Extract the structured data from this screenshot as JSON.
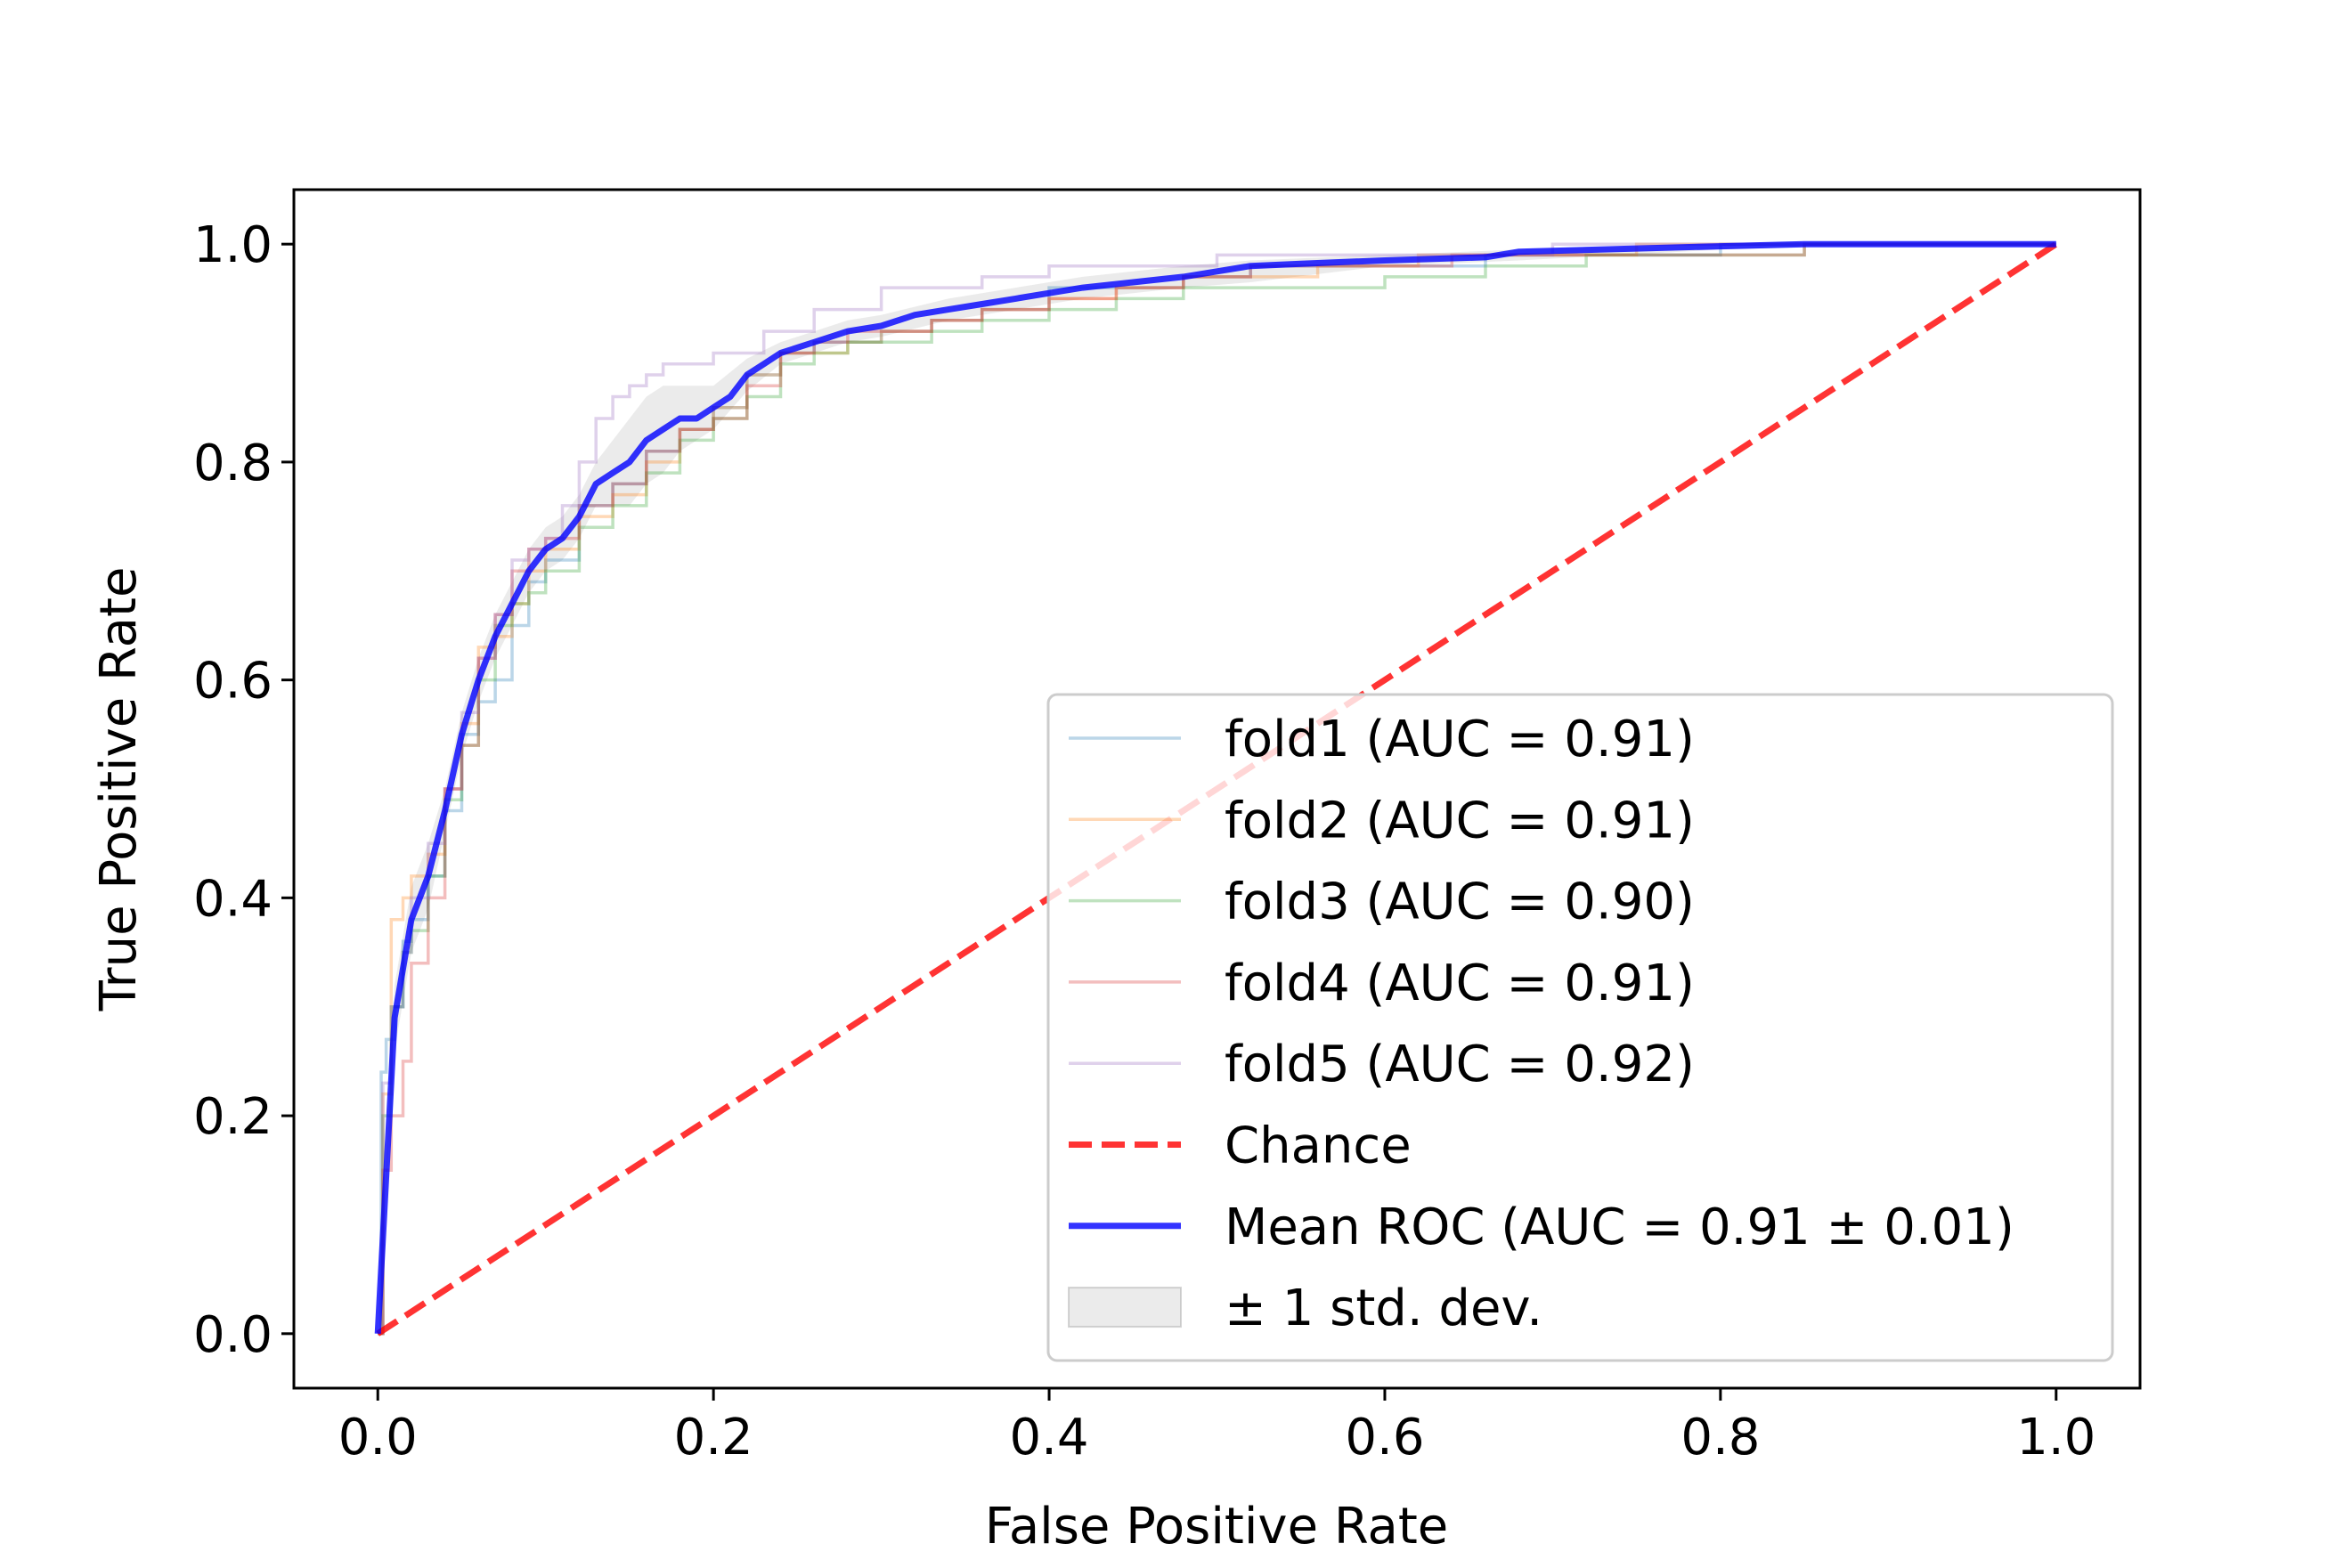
{
  "chart_data": {
    "type": "line",
    "title": "",
    "xlabel": "False Positive Rate",
    "ylabel": "True Positive Rate",
    "xlim": [
      -0.05,
      1.05
    ],
    "ylim": [
      -0.05,
      1.05
    ],
    "xticks": [
      0.0,
      0.2,
      0.4,
      0.6,
      0.8,
      1.0
    ],
    "yticks": [
      0.0,
      0.2,
      0.4,
      0.6,
      0.8,
      1.0
    ],
    "xtick_labels": [
      "0.0",
      "0.2",
      "0.4",
      "0.6",
      "0.8",
      "1.0"
    ],
    "ytick_labels": [
      "0.0",
      "0.2",
      "0.4",
      "0.6",
      "0.8",
      "1.0"
    ],
    "grid": false,
    "legend_position": "lower-right",
    "series": [
      {
        "name": "fold1 (AUC = 0.91)",
        "color": "#1f77b4",
        "style": "thin",
        "x": [
          0.0,
          0.002,
          0.005,
          0.01,
          0.015,
          0.02,
          0.03,
          0.04,
          0.05,
          0.06,
          0.07,
          0.08,
          0.09,
          0.1,
          0.12,
          0.14,
          0.16,
          0.18,
          0.2,
          0.22,
          0.24,
          0.26,
          0.28,
          0.3,
          0.33,
          0.36,
          0.4,
          0.44,
          0.48,
          0.52,
          0.56,
          0.6,
          0.66,
          0.7,
          0.8,
          0.9,
          1.0
        ],
        "y": [
          0.0,
          0.24,
          0.27,
          0.3,
          0.36,
          0.38,
          0.42,
          0.48,
          0.55,
          0.58,
          0.6,
          0.65,
          0.69,
          0.71,
          0.76,
          0.78,
          0.81,
          0.83,
          0.85,
          0.88,
          0.9,
          0.91,
          0.91,
          0.92,
          0.93,
          0.94,
          0.96,
          0.96,
          0.97,
          0.98,
          0.98,
          0.98,
          0.99,
          0.99,
          1.0,
          1.0,
          1.0
        ]
      },
      {
        "name": "fold2 (AUC = 0.91)",
        "color": "#ff7f0e",
        "style": "thin",
        "x": [
          0.0,
          0.003,
          0.008,
          0.015,
          0.02,
          0.03,
          0.04,
          0.05,
          0.06,
          0.07,
          0.08,
          0.09,
          0.1,
          0.12,
          0.14,
          0.16,
          0.18,
          0.2,
          0.22,
          0.24,
          0.26,
          0.28,
          0.3,
          0.33,
          0.36,
          0.4,
          0.44,
          0.48,
          0.52,
          0.56,
          0.62,
          0.68,
          0.75,
          0.85,
          1.0
        ],
        "y": [
          0.0,
          0.22,
          0.38,
          0.4,
          0.42,
          0.44,
          0.5,
          0.56,
          0.63,
          0.64,
          0.67,
          0.7,
          0.72,
          0.75,
          0.77,
          0.8,
          0.83,
          0.85,
          0.88,
          0.9,
          0.9,
          0.91,
          0.92,
          0.93,
          0.94,
          0.95,
          0.96,
          0.97,
          0.97,
          0.98,
          0.99,
          0.99,
          1.0,
          1.0,
          1.0
        ]
      },
      {
        "name": "fold3 (AUC = 0.90)",
        "color": "#2ca02c",
        "style": "thin",
        "x": [
          0.0,
          0.003,
          0.008,
          0.015,
          0.02,
          0.03,
          0.04,
          0.05,
          0.06,
          0.07,
          0.08,
          0.09,
          0.1,
          0.12,
          0.14,
          0.16,
          0.18,
          0.2,
          0.22,
          0.24,
          0.26,
          0.28,
          0.3,
          0.33,
          0.36,
          0.4,
          0.44,
          0.48,
          0.55,
          0.6,
          0.66,
          0.72,
          0.8,
          0.85,
          1.0
        ],
        "y": [
          0.0,
          0.2,
          0.3,
          0.35,
          0.37,
          0.42,
          0.49,
          0.54,
          0.6,
          0.65,
          0.67,
          0.68,
          0.7,
          0.74,
          0.76,
          0.79,
          0.82,
          0.84,
          0.86,
          0.89,
          0.9,
          0.91,
          0.91,
          0.92,
          0.93,
          0.94,
          0.95,
          0.96,
          0.96,
          0.97,
          0.98,
          0.99,
          0.99,
          1.0,
          1.0
        ]
      },
      {
        "name": "fold4 (AUC = 0.91)",
        "color": "#d62728",
        "style": "thin",
        "x": [
          0.0,
          0.003,
          0.008,
          0.015,
          0.02,
          0.03,
          0.04,
          0.05,
          0.06,
          0.07,
          0.08,
          0.09,
          0.1,
          0.12,
          0.14,
          0.16,
          0.18,
          0.2,
          0.22,
          0.24,
          0.26,
          0.28,
          0.3,
          0.33,
          0.36,
          0.4,
          0.44,
          0.48,
          0.52,
          0.58,
          0.64,
          0.72,
          0.85,
          1.0
        ],
        "y": [
          0.0,
          0.15,
          0.2,
          0.25,
          0.34,
          0.4,
          0.5,
          0.54,
          0.62,
          0.66,
          0.7,
          0.72,
          0.73,
          0.76,
          0.78,
          0.81,
          0.83,
          0.84,
          0.87,
          0.9,
          0.91,
          0.92,
          0.92,
          0.93,
          0.94,
          0.95,
          0.96,
          0.97,
          0.98,
          0.98,
          0.99,
          0.99,
          1.0,
          1.0
        ]
      },
      {
        "name": "fold5 (AUC = 0.92)",
        "color": "#9467bd",
        "style": "thin",
        "x": [
          0.0,
          0.003,
          0.008,
          0.015,
          0.02,
          0.03,
          0.04,
          0.05,
          0.06,
          0.07,
          0.08,
          0.09,
          0.1,
          0.11,
          0.12,
          0.13,
          0.14,
          0.15,
          0.16,
          0.17,
          0.18,
          0.2,
          0.23,
          0.26,
          0.3,
          0.33,
          0.36,
          0.4,
          0.44,
          0.5,
          0.56,
          0.62,
          0.7,
          0.8,
          1.0
        ],
        "y": [
          0.0,
          0.23,
          0.3,
          0.35,
          0.4,
          0.45,
          0.5,
          0.57,
          0.62,
          0.66,
          0.71,
          0.72,
          0.73,
          0.76,
          0.8,
          0.84,
          0.86,
          0.87,
          0.88,
          0.89,
          0.89,
          0.9,
          0.92,
          0.94,
          0.96,
          0.96,
          0.97,
          0.98,
          0.98,
          0.99,
          0.99,
          0.99,
          1.0,
          1.0,
          1.0
        ]
      },
      {
        "name": "Chance",
        "color": "#ff0000",
        "style": "dashed",
        "x": [
          0.0,
          1.0
        ],
        "y": [
          0.0,
          1.0
        ]
      },
      {
        "name": "Mean ROC (AUC = 0.91 ± 0.01)",
        "color": "#0000ff",
        "style": "thick",
        "x": [
          0.0,
          0.01,
          0.02,
          0.03,
          0.04,
          0.05,
          0.06,
          0.07,
          0.08,
          0.09,
          0.1,
          0.11,
          0.12,
          0.13,
          0.14,
          0.15,
          0.16,
          0.17,
          0.18,
          0.19,
          0.2,
          0.21,
          0.22,
          0.23,
          0.24,
          0.26,
          0.28,
          0.3,
          0.32,
          0.34,
          0.36,
          0.38,
          0.4,
          0.42,
          0.45,
          0.48,
          0.5,
          0.52,
          0.55,
          0.6,
          0.66,
          0.68,
          0.75,
          0.8,
          0.85,
          0.9,
          1.0
        ],
        "y": [
          0.0,
          0.29,
          0.38,
          0.42,
          0.48,
          0.55,
          0.6,
          0.64,
          0.67,
          0.7,
          0.72,
          0.73,
          0.75,
          0.78,
          0.79,
          0.8,
          0.82,
          0.83,
          0.84,
          0.84,
          0.85,
          0.86,
          0.88,
          0.89,
          0.9,
          0.91,
          0.92,
          0.925,
          0.935,
          0.94,
          0.945,
          0.95,
          0.955,
          0.96,
          0.965,
          0.97,
          0.975,
          0.98,
          0.982,
          0.985,
          0.988,
          0.993,
          0.996,
          0.998,
          1.0,
          1.0,
          1.0
        ]
      }
    ],
    "std_band": {
      "name": "± 1 std. dev.",
      "color": "#999999",
      "x": [
        0.0,
        0.01,
        0.02,
        0.03,
        0.04,
        0.05,
        0.06,
        0.07,
        0.08,
        0.09,
        0.1,
        0.11,
        0.12,
        0.13,
        0.14,
        0.15,
        0.16,
        0.17,
        0.18,
        0.19,
        0.2,
        0.22,
        0.24,
        0.26,
        0.28,
        0.3,
        0.34,
        0.38,
        0.42,
        0.48,
        0.52,
        0.6,
        0.68,
        0.8,
        0.9,
        1.0
      ],
      "upper": [
        0.0,
        0.32,
        0.41,
        0.45,
        0.5,
        0.57,
        0.62,
        0.66,
        0.69,
        0.72,
        0.74,
        0.75,
        0.77,
        0.8,
        0.82,
        0.84,
        0.86,
        0.87,
        0.87,
        0.87,
        0.87,
        0.895,
        0.91,
        0.92,
        0.93,
        0.935,
        0.95,
        0.96,
        0.97,
        0.98,
        0.985,
        0.99,
        0.995,
        1.0,
        1.0,
        1.0
      ],
      "lower": [
        0.0,
        0.26,
        0.35,
        0.39,
        0.46,
        0.53,
        0.58,
        0.62,
        0.65,
        0.68,
        0.7,
        0.71,
        0.73,
        0.76,
        0.76,
        0.76,
        0.78,
        0.79,
        0.81,
        0.82,
        0.83,
        0.865,
        0.89,
        0.9,
        0.91,
        0.915,
        0.93,
        0.94,
        0.95,
        0.96,
        0.965,
        0.98,
        0.985,
        0.995,
        1.0,
        1.0
      ]
    }
  }
}
